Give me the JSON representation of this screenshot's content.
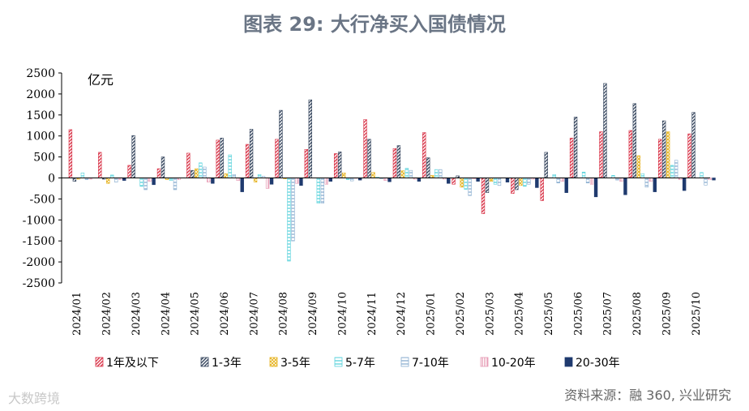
{
  "title": "图表 29: 大行净买入国债情况",
  "source": "资料来源：融 360, 兴业研究",
  "watermark": "大数跨境",
  "chart_data": {
    "type": "bar",
    "unit_label": "亿元",
    "ylim": [
      -2500,
      2500
    ],
    "yticks": [
      "2500",
      "2000",
      "1500",
      "1000",
      "500",
      "0",
      "-500",
      "-1000",
      "-1500",
      "-2000",
      "-2500"
    ],
    "ytick_values": [
      2500,
      2000,
      1500,
      1000,
      500,
      0,
      -500,
      -1000,
      -1500,
      -2000,
      -2500
    ],
    "categories": [
      "2024/01",
      "2024/02",
      "2024/03",
      "2024/04",
      "2024/05",
      "2024/06",
      "2024/07",
      "2024/08",
      "2024/09",
      "2024/10",
      "2024/11",
      "2024/12",
      "2025/01",
      "2025/02",
      "2025/03",
      "2025/04",
      "2025/05",
      "2025/06",
      "2025/07",
      "2025/08",
      "2025/09",
      "2025/10"
    ],
    "series": [
      {
        "name": "1年及以下",
        "color": "#d9364a",
        "pattern": "diag-red",
        "values": [
          1150,
          610,
          300,
          220,
          590,
          900,
          800,
          920,
          680,
          580,
          1390,
          700,
          1080,
          -150,
          -850,
          -370,
          -540,
          950,
          1100,
          1130,
          920,
          1050
        ]
      },
      {
        "name": "1-3年",
        "color": "#37475f",
        "pattern": "diag-navy",
        "values": [
          -80,
          -30,
          1010,
          500,
          180,
          950,
          1160,
          1610,
          1860,
          620,
          920,
          770,
          480,
          50,
          -350,
          -280,
          610,
          1450,
          2250,
          1770,
          1360,
          1560
        ]
      },
      {
        "name": "3-5年",
        "color": "#e6b422",
        "pattern": "grid-yellow",
        "values": [
          -30,
          -130,
          0,
          -40,
          220,
          100,
          -100,
          -20,
          0,
          120,
          130,
          170,
          60,
          -220,
          -80,
          -180,
          0,
          0,
          0,
          530,
          1100,
          0
        ]
      },
      {
        "name": "5-7年",
        "color": "#5bd3dc",
        "pattern": "lines-cyan",
        "values": [
          120,
          70,
          -200,
          -60,
          360,
          550,
          80,
          -1980,
          -600,
          -40,
          20,
          230,
          200,
          -270,
          -150,
          -200,
          80,
          140,
          60,
          100,
          300,
          130
        ]
      },
      {
        "name": "7-10年",
        "color": "#8aaed0",
        "pattern": "lines-blue",
        "values": [
          -40,
          -100,
          -280,
          -280,
          260,
          80,
          40,
          -1500,
          -600,
          -70,
          -20,
          180,
          200,
          -420,
          -180,
          -150,
          -120,
          -120,
          -50,
          -220,
          420,
          -170
        ]
      },
      {
        "name": "10-20年",
        "color": "#e79ab4",
        "pattern": "vlines-pink",
        "values": [
          -30,
          -40,
          -80,
          -40,
          -100,
          -60,
          -250,
          -130,
          -150,
          -10,
          -60,
          -30,
          -30,
          -20,
          0,
          -30,
          -80,
          -150,
          -80,
          -80,
          -40,
          -40
        ]
      },
      {
        "name": "20-30年",
        "color": "#1f3a6e",
        "pattern": "solid-navy",
        "values": [
          0,
          -60,
          -160,
          0,
          -130,
          -330,
          -150,
          -180,
          -80,
          -50,
          -90,
          -80,
          -130,
          -80,
          -100,
          -230,
          -350,
          -450,
          -400,
          -330,
          -300,
          -50
        ]
      }
    ]
  }
}
